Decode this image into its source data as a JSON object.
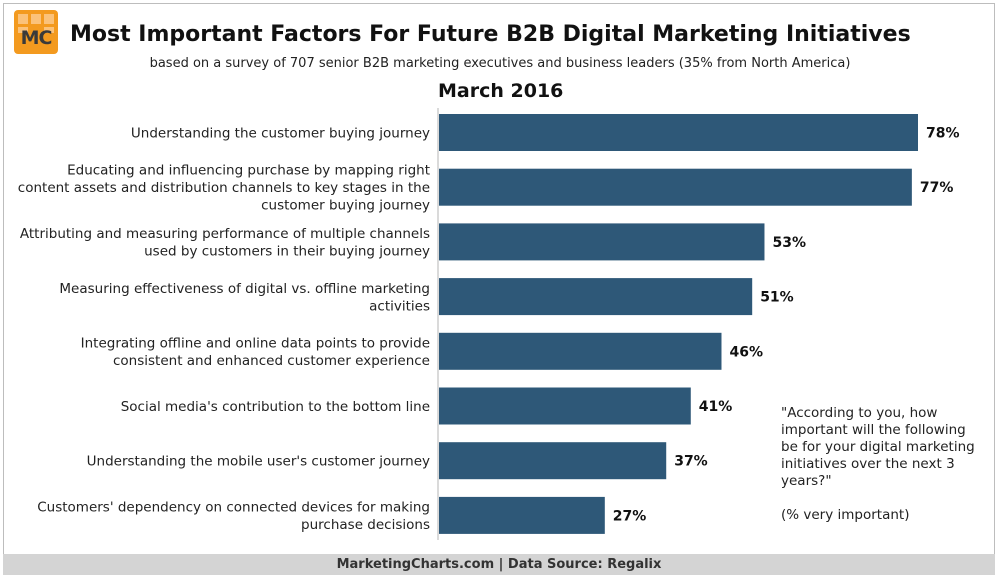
{
  "logo": {
    "text": "MC"
  },
  "chart_data": {
    "type": "bar",
    "orientation": "horizontal",
    "title": "Most Important Factors For Future B2B Digital Marketing Initiatives",
    "subtitle": "based on a survey of 707 senior B2B marketing executives and business leaders (35% from North America)",
    "period": "March 2016",
    "categories": [
      [
        "Understanding the customer buying journey"
      ],
      [
        "Educating and influencing purchase by mapping right",
        "content assets and distribution channels to key stages in the",
        "customer buying journey"
      ],
      [
        "Attributing and measuring performance of multiple channels",
        "used by customers in their buying journey"
      ],
      [
        "Measuring effectiveness of digital vs. offline marketing",
        "activities"
      ],
      [
        "Integrating offline and online data points to provide",
        "consistent and enhanced customer experience"
      ],
      [
        "Social media's contribution to the bottom line"
      ],
      [
        "Understanding the mobile user's customer journey"
      ],
      [
        "Customers' dependency on connected devices for making",
        "purchase decisions"
      ]
    ],
    "values": [
      78,
      77,
      53,
      51,
      46,
      41,
      37,
      27
    ],
    "value_labels": [
      "78%",
      "77%",
      "53%",
      "51%",
      "46%",
      "41%",
      "37%",
      "27%"
    ],
    "unit": "%",
    "xlim": [
      0,
      78
    ],
    "bar_color": "#2e5878",
    "note_quote": "\"According to you, how important will the following be for your digital marketing initiatives over the next 3 years?\"",
    "note_unit": "(% very important)"
  },
  "footer": {
    "text": "MarketingCharts.com | Data Source: Regalix"
  }
}
